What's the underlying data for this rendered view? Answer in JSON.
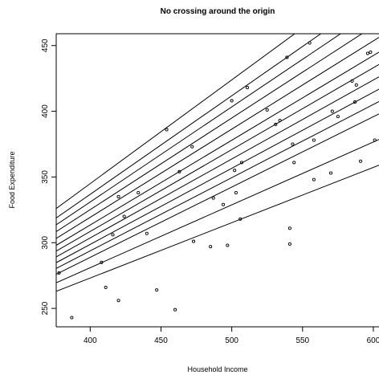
{
  "chart_data": {
    "type": "scatter",
    "title": "No crossing around the origin",
    "xlabel": "Household Income",
    "ylabel": "Food Expenditure",
    "xlim": [
      376,
      604
    ],
    "ylim": [
      236,
      459
    ],
    "xticks": [
      400,
      450,
      500,
      550,
      600
    ],
    "yticks": [
      250,
      300,
      350,
      400,
      450
    ],
    "grid": false,
    "points": [
      {
        "x": 378,
        "y": 277
      },
      {
        "x": 387,
        "y": 243
      },
      {
        "x": 408,
        "y": 285
      },
      {
        "x": 411,
        "y": 266
      },
      {
        "x": 416,
        "y": 306
      },
      {
        "x": 420,
        "y": 256
      },
      {
        "x": 420,
        "y": 335
      },
      {
        "x": 424,
        "y": 320
      },
      {
        "x": 434,
        "y": 338
      },
      {
        "x": 440,
        "y": 307
      },
      {
        "x": 447,
        "y": 264
      },
      {
        "x": 454,
        "y": 386
      },
      {
        "x": 460,
        "y": 249
      },
      {
        "x": 463,
        "y": 354
      },
      {
        "x": 472,
        "y": 373
      },
      {
        "x": 473,
        "y": 301
      },
      {
        "x": 485,
        "y": 297
      },
      {
        "x": 487,
        "y": 334
      },
      {
        "x": 494,
        "y": 329
      },
      {
        "x": 497,
        "y": 298
      },
      {
        "x": 500,
        "y": 408
      },
      {
        "x": 502,
        "y": 355
      },
      {
        "x": 503,
        "y": 338
      },
      {
        "x": 506,
        "y": 318
      },
      {
        "x": 507,
        "y": 361
      },
      {
        "x": 511,
        "y": 418
      },
      {
        "x": 525,
        "y": 401
      },
      {
        "x": 531,
        "y": 390
      },
      {
        "x": 534,
        "y": 393
      },
      {
        "x": 539,
        "y": 441
      },
      {
        "x": 541,
        "y": 311
      },
      {
        "x": 541,
        "y": 299
      },
      {
        "x": 543,
        "y": 375
      },
      {
        "x": 544,
        "y": 361
      },
      {
        "x": 555,
        "y": 452
      },
      {
        "x": 558,
        "y": 378
      },
      {
        "x": 558,
        "y": 348
      },
      {
        "x": 570,
        "y": 353
      },
      {
        "x": 571,
        "y": 400
      },
      {
        "x": 575,
        "y": 396
      },
      {
        "x": 585,
        "y": 423
      },
      {
        "x": 587,
        "y": 407
      },
      {
        "x": 588,
        "y": 420
      },
      {
        "x": 591,
        "y": 362
      },
      {
        "x": 596,
        "y": 444
      },
      {
        "x": 598,
        "y": 445
      },
      {
        "x": 601,
        "y": 378
      }
    ],
    "lines": [
      {
        "x1": 376,
        "y1": 326,
        "x2": 604,
        "y2": 506
      },
      {
        "x1": 376,
        "y1": 318.8,
        "x2": 604,
        "y2": 489.8
      },
      {
        "x1": 376,
        "y1": 313.6,
        "x2": 604,
        "y2": 478.6
      },
      {
        "x1": 376,
        "y1": 308.4,
        "x2": 604,
        "y2": 467.4
      },
      {
        "x1": 376,
        "y1": 303.2,
        "x2": 604,
        "y2": 456.2
      },
      {
        "x1": 376,
        "y1": 298,
        "x2": 604,
        "y2": 445
      },
      {
        "x1": 376,
        "y1": 293.6,
        "x2": 604,
        "y2": 435.6
      },
      {
        "x1": 376,
        "y1": 289.2,
        "x2": 604,
        "y2": 426.2
      },
      {
        "x1": 376,
        "y1": 284.8,
        "x2": 604,
        "y2": 416.8
      },
      {
        "x1": 376,
        "y1": 280.4,
        "x2": 604,
        "y2": 407.4
      },
      {
        "x1": 376,
        "y1": 276,
        "x2": 604,
        "y2": 398
      },
      {
        "x1": 376,
        "y1": 269.5,
        "x2": 604,
        "y2": 378.5
      },
      {
        "x1": 376,
        "y1": 263,
        "x2": 604,
        "y2": 359
      }
    ]
  }
}
